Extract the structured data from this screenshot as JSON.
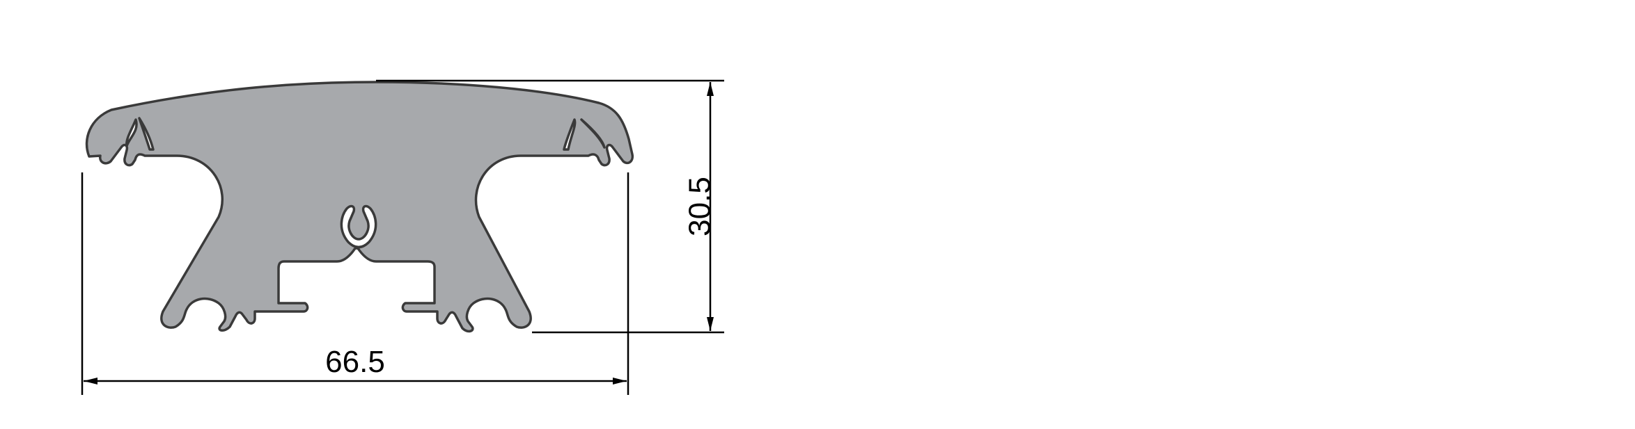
{
  "drawing": {
    "width_label": "66.5",
    "height_label": "30.5",
    "colors": {
      "profile_fill": "#a7a9ac",
      "profile_stroke": "#3a3a3a",
      "line": "#000000"
    }
  }
}
